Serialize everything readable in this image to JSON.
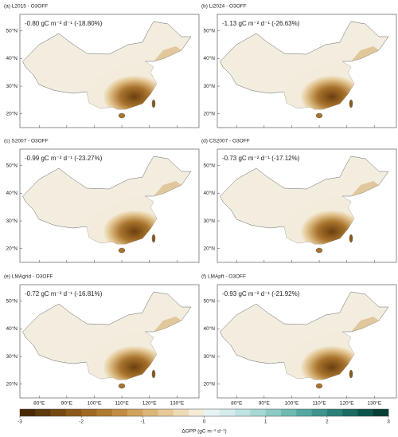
{
  "panels": [
    {
      "title": "(a) L2015 - O3OFF",
      "annotation": "-0.80 gC m⁻² d⁻¹ (-18.80%)"
    },
    {
      "title": "(b) Li2024 - O3OFF",
      "annotation": "-1.13 gC m⁻² d⁻¹ (-26.63%)"
    },
    {
      "title": "(c) S2007 - O3OFF",
      "annotation": "-0.99 gC m⁻² d⁻¹ (-23.27%)"
    },
    {
      "title": "(d) CS2007 - O3OFF",
      "annotation": "-0.73 gC m⁻² d⁻¹ (-17.12%)"
    },
    {
      "title": "(e) LMAgrid - O3OFF",
      "annotation": "-0.72 gC m⁻² d⁻¹ (-16.81%)"
    },
    {
      "title": "(f) LMApft - O3OFF",
      "annotation": "-0.93 gC m⁻² d⁻¹ (-21.92%)"
    }
  ],
  "latlim": [
    15,
    56
  ],
  "lat_ticks": [
    {
      "value": 50,
      "label": "50°N"
    },
    {
      "value": 40,
      "label": "40°N"
    },
    {
      "value": 30,
      "label": "30°N"
    },
    {
      "value": 20,
      "label": "20°N"
    }
  ],
  "lonlim": [
    73,
    138
  ],
  "lon_ticks": [
    {
      "value": 80,
      "label": "80°E"
    },
    {
      "value": 90,
      "label": "90°E"
    },
    {
      "value": 100,
      "label": "100°E"
    },
    {
      "value": 110,
      "label": "110°E"
    },
    {
      "value": 120,
      "label": "120°E"
    },
    {
      "value": 130,
      "label": "130°E"
    }
  ],
  "colorbar": {
    "label": "ΔGPP (gC m⁻² d⁻¹)",
    "lim": [
      -3,
      3
    ],
    "ticks": [
      -3,
      -2,
      -1,
      0,
      1,
      2,
      3
    ],
    "colors": [
      "#4a2a06",
      "#5f3a0c",
      "#744a12",
      "#8a5a1a",
      "#9e6a24",
      "#b07a30",
      "#c18d44",
      "#d0a25c",
      "#dcb678",
      "#e6c996",
      "#eedbb6",
      "#f5ecd8",
      "#e8f4f4",
      "#d4ecec",
      "#bfe3e2",
      "#a6d8d5",
      "#8ccac6",
      "#70b9b4",
      "#56a7a1",
      "#3f948d",
      "#2b8078",
      "#1a6b62",
      "#0d554c",
      "#033f36"
    ]
  }
}
